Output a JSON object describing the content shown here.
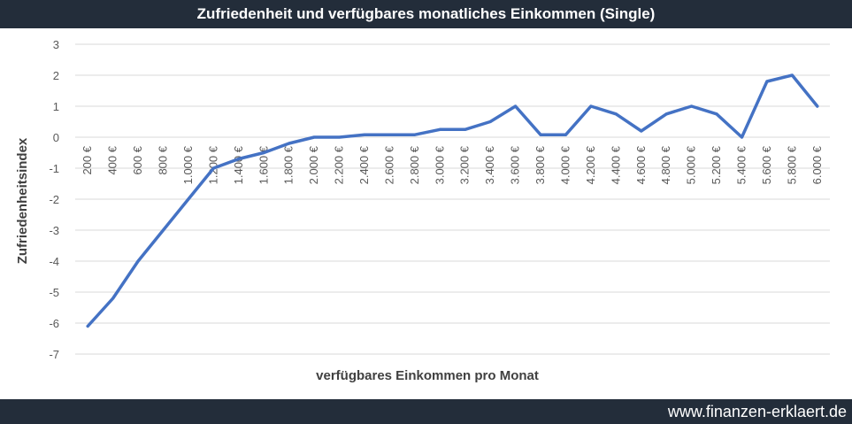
{
  "chart_data": {
    "type": "line",
    "title": "Zufriedenheit und verfügbares monatliches Einkommen (Single)",
    "xlabel": "verfügbares Einkommen pro Monat",
    "ylabel": "Zufriedenheitsindex",
    "categories": [
      "200 €",
      "400 €",
      "600 €",
      "800 €",
      "1.000 €",
      "1.200 €",
      "1.400 €",
      "1.600 €",
      "1.800 €",
      "2.000 €",
      "2.200 €",
      "2.400 €",
      "2.600 €",
      "2.800 €",
      "3.000 €",
      "3.200 €",
      "3.400 €",
      "3.600 €",
      "3.800 €",
      "4.000 €",
      "4.200 €",
      "4.400 €",
      "4.600 €",
      "4.800 €",
      "5.000 €",
      "5.200 €",
      "5.400 €",
      "5.600 €",
      "5.800 €",
      "6.000 €"
    ],
    "series": [
      {
        "values": [
          -6.1,
          -5.2,
          -4.0,
          -3.0,
          -2.0,
          -1.0,
          -0.7,
          -0.5,
          -0.2,
          0.0,
          0.0,
          0.08,
          0.08,
          0.08,
          0.25,
          0.25,
          0.5,
          1.0,
          0.08,
          0.08,
          1.0,
          0.75,
          0.2,
          0.75,
          1.0,
          0.75,
          0.0,
          1.8,
          2.0,
          1.0
        ],
        "color": "#4472c4"
      }
    ],
    "yticks": [
      "3",
      "2",
      "1",
      "0",
      "-1",
      "-2",
      "-3",
      "-4",
      "-5",
      "-6",
      "-7"
    ],
    "ylim": [
      -7,
      3
    ],
    "grid": true,
    "legend": "none"
  },
  "footer": {
    "url": "www.finanzen-erklaert.de"
  },
  "colors": {
    "bar_background": "#232d3a",
    "line": "#4472c4",
    "grid": "#d9d9d9"
  }
}
